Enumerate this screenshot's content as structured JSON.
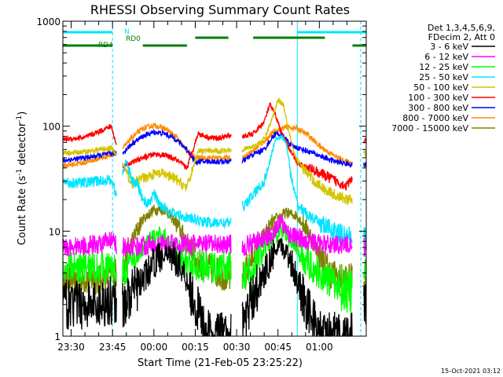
{
  "chart_data": {
    "type": "line",
    "title": "RHESSI Observing Summary Count Rates",
    "xlabel": "Start Time (21-Feb-05 23:25:22)",
    "ylabel_parts": [
      "Count Rate (s",
      "-1",
      " detector",
      "-1",
      ")"
    ],
    "yscale": "log",
    "ylim": [
      1,
      1000
    ],
    "xlim_min": [
      -3,
      107
    ],
    "x_ticks": [
      {
        "min": 0,
        "label": "23:30"
      },
      {
        "min": 15,
        "label": "23:45"
      },
      {
        "min": 30,
        "label": "00:00"
      },
      {
        "min": 45,
        "label": "00:15"
      },
      {
        "min": 60,
        "label": "00:30"
      },
      {
        "min": 75,
        "label": "00:45"
      },
      {
        "min": 90,
        "label": "01:00"
      }
    ],
    "y_ticks": [
      {
        "value": 1,
        "label": "1"
      },
      {
        "value": 10,
        "label": "10"
      },
      {
        "value": 100,
        "label": "100"
      },
      {
        "value": 1000,
        "label": "1000"
      }
    ],
    "legend_header": [
      "Det 1,3,4,5,6,9,",
      "FDecim 2, Att 0"
    ],
    "legend_position": "top-right",
    "footer_date": "15-Oct-2021 03:12",
    "flags": [
      {
        "name": "N",
        "segments": [
          [
            -3,
            15
          ],
          [
            82,
            107
          ]
        ]
      },
      {
        "name": "RD0",
        "segments": [
          [
            45,
            57
          ],
          [
            66,
            92
          ]
        ]
      },
      {
        "name": "RD4",
        "segments": [
          [
            -3,
            15
          ],
          [
            26,
            42
          ],
          [
            102,
            107
          ]
        ]
      }
    ],
    "flag_colors": {
      "N": "#00e5ff",
      "RD0": "#008000",
      "RD4": "#008000"
    },
    "night_lines": [
      -3,
      15,
      82,
      105
    ],
    "gaps": [
      [
        16.5,
        18.5
      ],
      [
        58,
        62
      ],
      [
        102,
        106
      ]
    ],
    "series": [
      {
        "name": "3 - 6 keV",
        "color": "#000000",
        "x": [
          -3,
          0,
          8,
          14.5,
          18.5,
          22,
          26,
          30,
          33,
          36,
          39,
          42,
          45,
          50,
          55,
          58,
          62,
          66,
          69,
          72,
          74,
          76,
          78,
          80,
          82,
          84,
          87,
          90,
          95,
          100,
          102,
          106,
          107
        ],
        "y": [
          2,
          2,
          2,
          2.2,
          2,
          2.5,
          3.5,
          5,
          6,
          6,
          5,
          3.5,
          2,
          1,
          1,
          1,
          1.2,
          2.5,
          3.5,
          5,
          6.5,
          7,
          6.5,
          5,
          3.5,
          2.5,
          1.5,
          1,
          1,
          1,
          1,
          2,
          2
        ]
      },
      {
        "name": "6 - 12 keV",
        "color": "#ff00ff",
        "x": [
          -3,
          10,
          14.5,
          18.5,
          30,
          45,
          58,
          62,
          72,
          76,
          80,
          90,
          102,
          106,
          107
        ],
        "y": [
          7,
          7.5,
          8,
          7,
          7.5,
          7.5,
          7.5,
          7,
          9,
          12,
          9,
          7.5,
          7.5,
          7,
          7
        ]
      },
      {
        "name": "12 - 25 keV",
        "color": "#00ff00",
        "x": [
          -3,
          10,
          14.5,
          18.5,
          24,
          28,
          31,
          34,
          38,
          42,
          48,
          58,
          62,
          66,
          70,
          74,
          76,
          78,
          82,
          86,
          92,
          98,
          102,
          106,
          107
        ],
        "y": [
          4.5,
          4.5,
          4.5,
          4,
          6,
          8,
          9,
          8.5,
          6.5,
          5,
          4.5,
          4.5,
          3.5,
          4.5,
          6.5,
          9,
          11,
          9.5,
          6.5,
          5,
          3.5,
          3,
          2.5,
          4,
          4
        ]
      },
      {
        "name": "25 - 50 keV",
        "color": "#00e5ff",
        "x": [
          -3,
          5,
          14.5,
          17,
          18.5,
          20,
          22,
          24,
          26,
          28,
          30,
          32,
          34,
          36,
          40,
          44,
          50,
          58,
          62,
          66,
          70,
          72,
          74,
          76,
          78,
          80,
          82,
          86,
          90,
          95,
          100,
          102,
          106,
          107
        ],
        "y": [
          29,
          29,
          31,
          20,
          33,
          48,
          30,
          28,
          20,
          18,
          23,
          18,
          17,
          15,
          14,
          13,
          12,
          12,
          17,
          22,
          30,
          45,
          75,
          80,
          70,
          30,
          18,
          14,
          12,
          10,
          9,
          9,
          9,
          9
        ]
      },
      {
        "name": "50 - 100 keV",
        "color": "#d4c400",
        "x": [
          -3,
          5,
          14.5,
          18.5,
          22,
          26,
          30,
          34,
          38,
          42,
          46,
          50,
          54,
          58,
          62,
          66,
          70,
          73,
          75,
          77,
          79,
          81,
          84,
          88,
          92,
          96,
          100,
          102,
          106,
          107
        ],
        "y": [
          55,
          57,
          62,
          45,
          28,
          32,
          35,
          35,
          31,
          26,
          58,
          58,
          58,
          60,
          60,
          64,
          75,
          120,
          180,
          160,
          90,
          52,
          40,
          30,
          25,
          22,
          20,
          20,
          55,
          55
        ]
      },
      {
        "name": "100 - 300 keV",
        "color": "#ff0000",
        "x": [
          -3,
          5,
          14.5,
          18.5,
          22,
          26,
          30,
          34,
          38,
          42,
          46,
          50,
          54,
          58,
          62,
          66,
          70,
          72,
          74,
          76,
          78,
          80,
          82,
          84,
          88,
          92,
          96,
          100,
          102,
          106,
          107
        ],
        "y": [
          75,
          78,
          100,
          42,
          45,
          50,
          54,
          53,
          48,
          40,
          85,
          78,
          77,
          82,
          80,
          84,
          110,
          160,
          130,
          90,
          70,
          55,
          45,
          42,
          38,
          34,
          30,
          27,
          32,
          72,
          72
        ]
      },
      {
        "name": "300 - 800 keV",
        "color": "#0000ff",
        "x": [
          -3,
          5,
          14.5,
          18.5,
          22,
          26,
          30,
          34,
          38,
          42,
          45,
          46,
          58,
          62,
          66,
          70,
          72,
          74,
          76,
          78,
          80,
          84,
          88,
          92,
          96,
          100,
          102,
          106,
          107
        ],
        "y": [
          47,
          50,
          55,
          55,
          68,
          80,
          88,
          85,
          75,
          60,
          46,
          46,
          46,
          46,
          54,
          60,
          72,
          85,
          82,
          75,
          65,
          60,
          55,
          50,
          46,
          44,
          43,
          43,
          43
        ]
      },
      {
        "name": "800 - 7000 keV",
        "color": "#ff8c00",
        "x": [
          -3,
          5,
          14.5,
          18.5,
          22,
          26,
          30,
          34,
          38,
          42,
          45,
          46,
          58,
          62,
          66,
          70,
          74,
          78,
          82,
          86,
          90,
          94,
          98,
          102,
          106,
          107
        ],
        "y": [
          42,
          45,
          53,
          60,
          78,
          95,
          102,
          95,
          80,
          58,
          50,
          50,
          50,
          50,
          58,
          72,
          90,
          98,
          95,
          82,
          65,
          55,
          48,
          44,
          42,
          42
        ]
      },
      {
        "name": "7000 - 15000 keV",
        "color": "#808000",
        "x": [
          -3,
          10,
          14.5,
          18.5,
          22,
          26,
          30,
          34,
          38,
          42,
          46,
          58,
          62,
          66,
          70,
          74,
          78,
          82,
          86,
          90,
          94,
          98,
          102,
          106,
          107
        ],
        "y": [
          3.5,
          3.5,
          4,
          4,
          8,
          13,
          16,
          16,
          12,
          8,
          5,
          3.5,
          3.5,
          6,
          9,
          13,
          15,
          14,
          10,
          6,
          4,
          3.5,
          3.5,
          3.5,
          3.5
        ]
      }
    ]
  }
}
